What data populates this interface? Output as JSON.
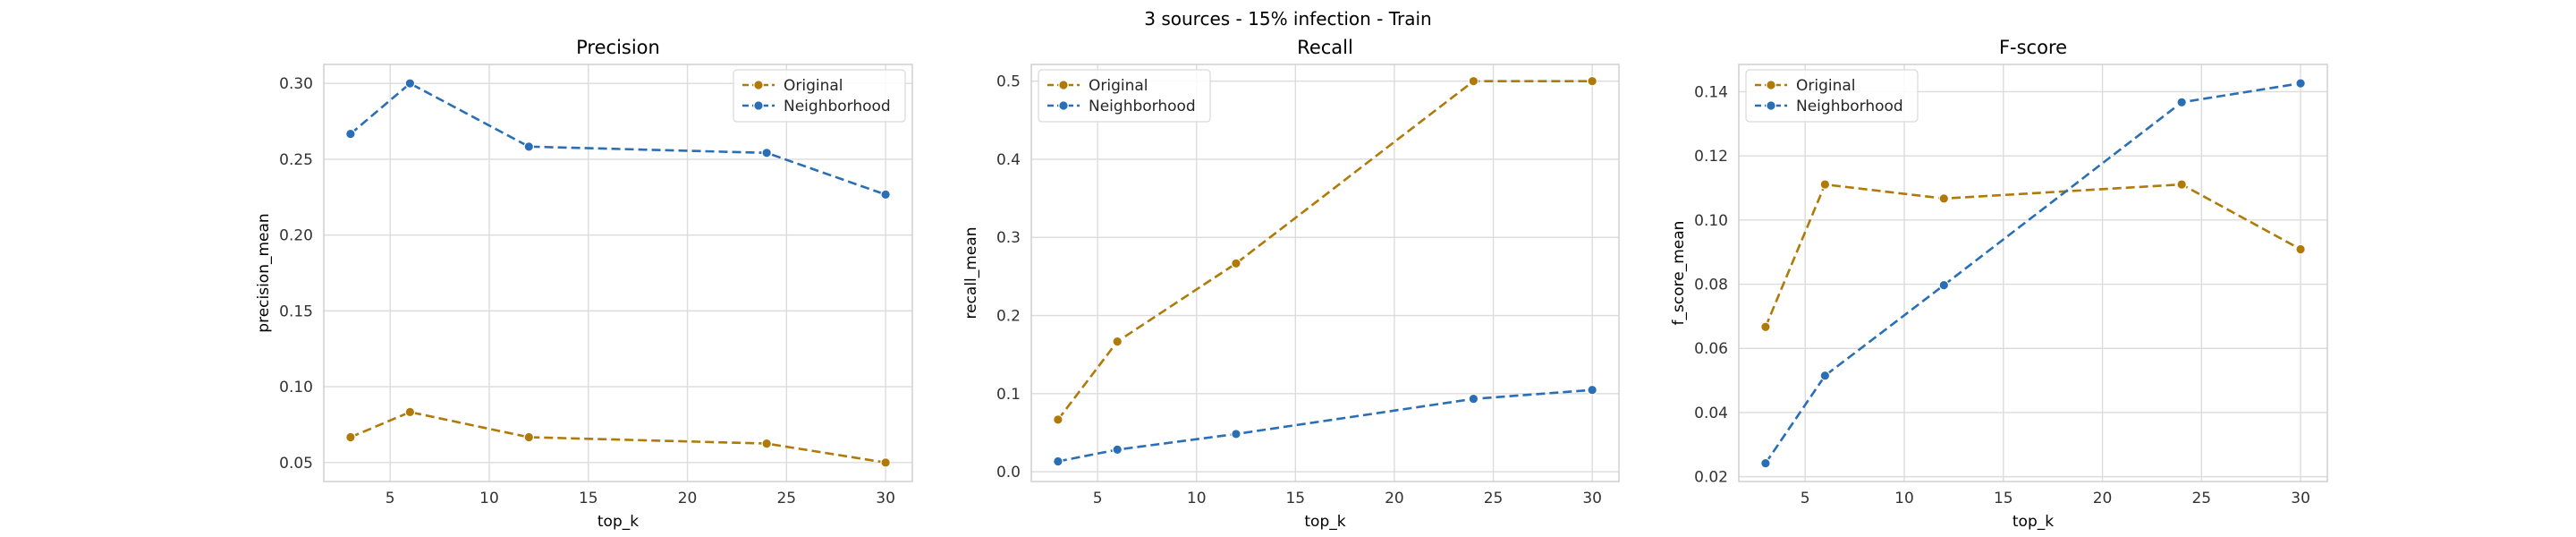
{
  "figure": {
    "suptitle": "3 sources - 15% infection - Train"
  },
  "chart_data": [
    {
      "type": "line",
      "title": "Precision",
      "xlabel": "top_k",
      "ylabel": "precision_mean",
      "xlim": [
        1.65,
        31.35
      ],
      "ylim": [
        0.0375,
        0.3125
      ],
      "xticks": [
        5,
        10,
        15,
        20,
        25,
        30
      ],
      "yticks": [
        0.05,
        0.1,
        0.15,
        0.2,
        0.25,
        0.3
      ],
      "ytick_decimals": 2,
      "legend_position": "upper right",
      "grid": true,
      "x": [
        3,
        6,
        12,
        24,
        30
      ],
      "series": [
        {
          "name": "Original",
          "color": "#b07a08",
          "marker": "circle",
          "linestyle": "dashed",
          "values": [
            0.0667,
            0.0833,
            0.0667,
            0.0625,
            0.05
          ]
        },
        {
          "name": "Neighborhood",
          "color": "#2a6fb5",
          "marker": "circle",
          "linestyle": "dashed",
          "values": [
            0.2667,
            0.3,
            0.2583,
            0.2542,
            0.2267
          ]
        }
      ]
    },
    {
      "type": "line",
      "title": "Recall",
      "xlabel": "top_k",
      "ylabel": "recall_mean",
      "xlim": [
        1.65,
        31.35
      ],
      "ylim": [
        -0.0125,
        0.5214
      ],
      "xticks": [
        5,
        10,
        15,
        20,
        25,
        30
      ],
      "yticks": [
        0.0,
        0.1,
        0.2,
        0.3,
        0.4,
        0.5
      ],
      "ytick_decimals": 1,
      "legend_position": "upper left",
      "grid": true,
      "x": [
        3,
        6,
        12,
        24,
        30
      ],
      "series": [
        {
          "name": "Original",
          "color": "#b07a08",
          "marker": "circle",
          "linestyle": "dashed",
          "values": [
            0.0667,
            0.1667,
            0.2667,
            0.5,
            0.5
          ]
        },
        {
          "name": "Neighborhood",
          "color": "#2a6fb5",
          "marker": "circle",
          "linestyle": "dashed",
          "values": [
            0.0133,
            0.0283,
            0.0483,
            0.0933,
            0.1047
          ]
        }
      ]
    },
    {
      "type": "line",
      "title": "F-score",
      "xlabel": "top_k",
      "ylabel": "f_score_mean",
      "xlim": [
        1.65,
        31.35
      ],
      "ylim": [
        0.0185,
        0.1485
      ],
      "xticks": [
        5,
        10,
        15,
        20,
        25,
        30
      ],
      "yticks": [
        0.02,
        0.04,
        0.06,
        0.08,
        0.1,
        0.12,
        0.14
      ],
      "ytick_decimals": 2,
      "legend_position": "upper left",
      "grid": true,
      "x": [
        3,
        6,
        12,
        24,
        30
      ],
      "series": [
        {
          "name": "Original",
          "color": "#b07a08",
          "marker": "circle",
          "linestyle": "dashed",
          "values": [
            0.0667,
            0.1111,
            0.1067,
            0.1111,
            0.0909
          ]
        },
        {
          "name": "Neighborhood",
          "color": "#2a6fb5",
          "marker": "circle",
          "linestyle": "dashed",
          "values": [
            0.0242,
            0.0515,
            0.0797,
            0.1367,
            0.1426
          ]
        }
      ]
    }
  ]
}
